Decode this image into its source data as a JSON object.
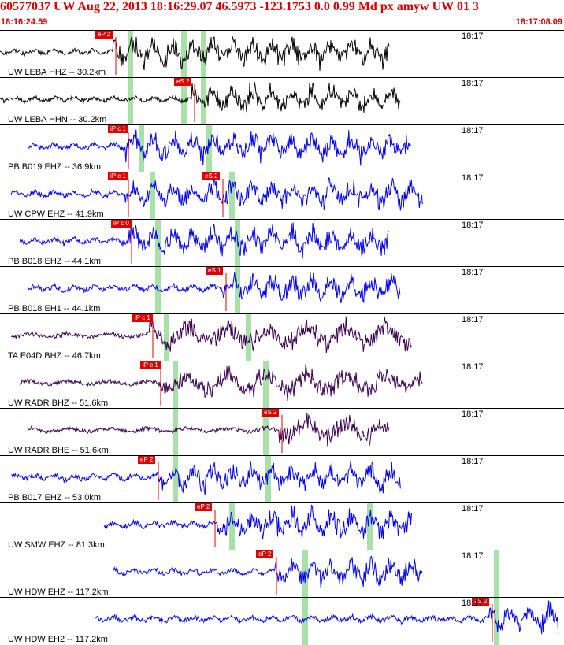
{
  "header": {
    "title": "60577037 UW Aug 22, 2013 18:16:29.07   46.5973 -123.1753  0.0 0.99 Md px amyw UW 01   3",
    "start_time": "18:16:24.59",
    "end_time": "18:17:08.09"
  },
  "minute_label": "18:17",
  "colors": {
    "header_text": "#d40000",
    "blue_trace": "#0000ee",
    "black_trace": "#000000",
    "purple_trace": "#3a0050",
    "pick_box": "#e00000",
    "green_marker": "#a8e0a8"
  },
  "panels": [
    {
      "label": "UW LEBA HHZ -- 30.2km",
      "trace": "black",
      "picks": [
        {
          "text": "eP 2",
          "pos": 0.2
        }
      ],
      "markers": [
        0.23,
        0.325,
        0.36
      ]
    },
    {
      "label": "UW LEBA HHN -- 30.2km",
      "trace": "black",
      "picks": [
        {
          "text": "eS 2",
          "pos": 0.34
        }
      ],
      "markers": [
        0.23,
        0.325,
        0.36
      ]
    },
    {
      "label": "PB B019 EHZ -- 36.9km",
      "trace": "blue",
      "picks": [
        {
          "text": "iP c 1",
          "pos": 0.222
        }
      ],
      "markers": [
        0.25,
        0.37
      ]
    },
    {
      "label": "UW CPW EHZ -- 41.9km",
      "trace": "blue",
      "picks": [
        {
          "text": "iP c 1",
          "pos": 0.222
        },
        {
          "text": "eS 2",
          "pos": 0.39
        }
      ],
      "markers": [
        0.27,
        0.41
      ]
    },
    {
      "label": "PB B018 EHZ -- 44.1km",
      "trace": "blue",
      "picks": [
        {
          "text": "iP c 0",
          "pos": 0.228
        }
      ],
      "markers": [
        0.28,
        0.42
      ]
    },
    {
      "label": "PB B018 EH1 -- 44.1km",
      "trace": "blue",
      "picks": [
        {
          "text": "eS 1",
          "pos": 0.395
        }
      ],
      "markers": [
        0.28,
        0.42
      ]
    },
    {
      "label": "TA E04D BHZ -- 46.7km",
      "trace": "purple",
      "picks": [
        {
          "text": "iP c 1",
          "pos": 0.265
        }
      ],
      "markers": [
        0.295,
        0.44
      ]
    },
    {
      "label": "UW RADR BHZ -- 51.6km",
      "trace": "purple",
      "picks": [
        {
          "text": "iP c 1",
          "pos": 0.28
        }
      ],
      "markers": [
        0.31,
        0.47
      ]
    },
    {
      "label": "UW RADR BHE -- 51.6km",
      "trace": "purple",
      "picks": [
        {
          "text": "eS 2",
          "pos": 0.495
        }
      ],
      "markers": [
        0.31,
        0.47
      ]
    },
    {
      "label": "PB B017 EHZ -- 53.0km",
      "trace": "blue",
      "picks": [
        {
          "text": "eP 2",
          "pos": 0.275
        }
      ],
      "markers": [
        0.31,
        0.475
      ]
    },
    {
      "label": "UW SMW EHZ -- 81.3km",
      "trace": "blue",
      "picks": [
        {
          "text": "eP 2",
          "pos": 0.375
        }
      ],
      "markers": [
        0.41,
        0.655
      ]
    },
    {
      "label": "UW HDW EHZ -- 117.2km",
      "trace": "blue",
      "picks": [
        {
          "text": "eP 2",
          "pos": 0.485
        }
      ],
      "markers": [
        0.54,
        0.88
      ]
    },
    {
      "label": "UW HDW EH2 -- 117.2km",
      "trace": "blue",
      "picks": [
        {
          "text": "eS 2",
          "pos": 0.868
        }
      ],
      "markers": [
        0.54,
        0.88
      ]
    }
  ]
}
